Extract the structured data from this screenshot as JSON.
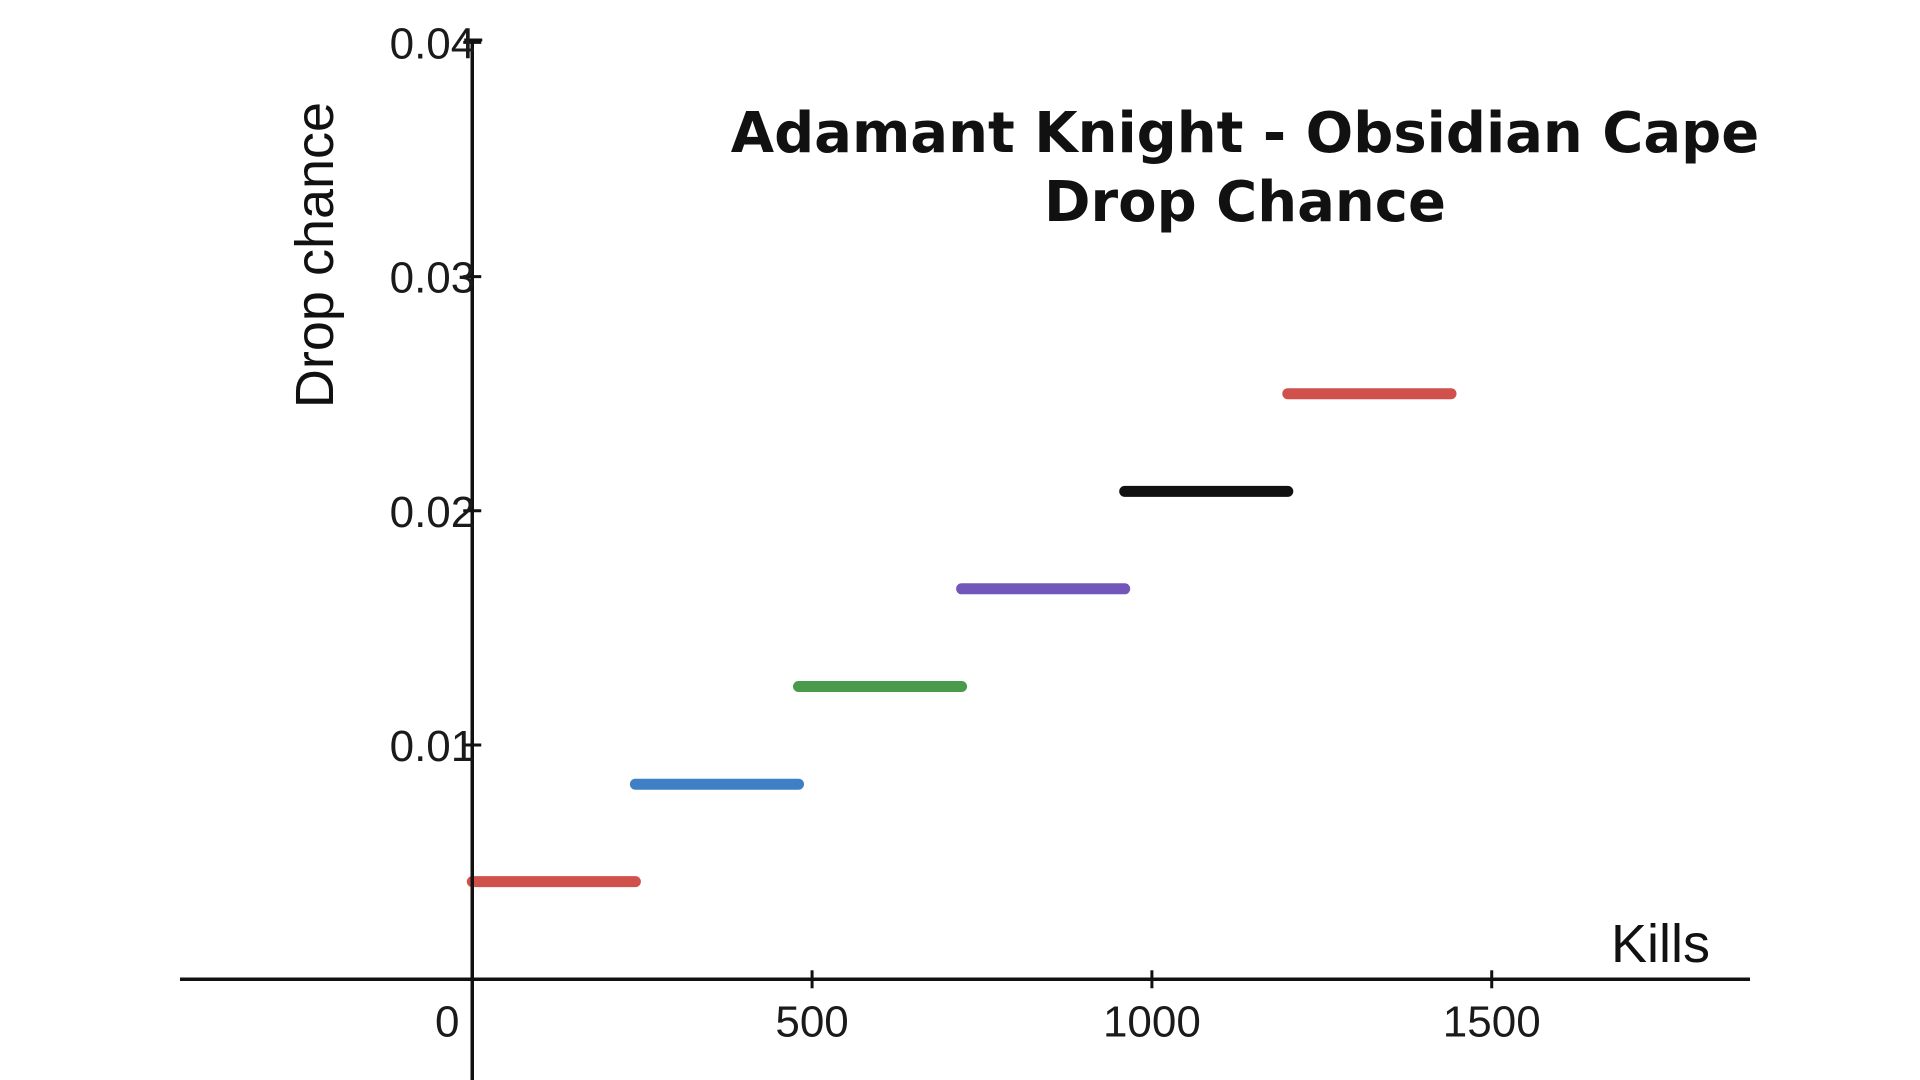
{
  "chart_data": {
    "type": "line",
    "title_lines": [
      "Adamant Knight - Obsidian Cape",
      "Drop Chance"
    ],
    "xlabel": "Kills",
    "ylabel": "Drop chance",
    "xlim": [
      -430,
      1880
    ],
    "ylim": [
      -0.0043,
      0.0401
    ],
    "grid": false,
    "x_ticks": [
      {
        "value": 0,
        "label": "0"
      },
      {
        "value": 500,
        "label": "500"
      },
      {
        "value": 1000,
        "label": "1000"
      },
      {
        "value": 1500,
        "label": "1500"
      }
    ],
    "y_ticks": [
      {
        "value": 0.01,
        "label": "0.01"
      },
      {
        "value": 0.02,
        "label": "0.02"
      },
      {
        "value": 0.03,
        "label": "0.03"
      },
      {
        "value": 0.04,
        "label": "0.04"
      }
    ],
    "series": [
      {
        "x": [
          0,
          240
        ],
        "y": [
          0.00417,
          0.00417
        ],
        "color": "#d0504c"
      },
      {
        "x": [
          240,
          480
        ],
        "y": [
          0.00833,
          0.00833
        ],
        "color": "#3f7fc6"
      },
      {
        "x": [
          480,
          720
        ],
        "y": [
          0.0125,
          0.0125
        ],
        "color": "#4a9a4c"
      },
      {
        "x": [
          720,
          960
        ],
        "y": [
          0.01667,
          0.01667
        ],
        "color": "#7256b9"
      },
      {
        "x": [
          960,
          1200
        ],
        "y": [
          0.02083,
          0.02083
        ],
        "color": "#111111"
      },
      {
        "x": [
          1200,
          1440
        ],
        "y": [
          0.025,
          0.025
        ],
        "color": "#d0504c"
      }
    ]
  }
}
